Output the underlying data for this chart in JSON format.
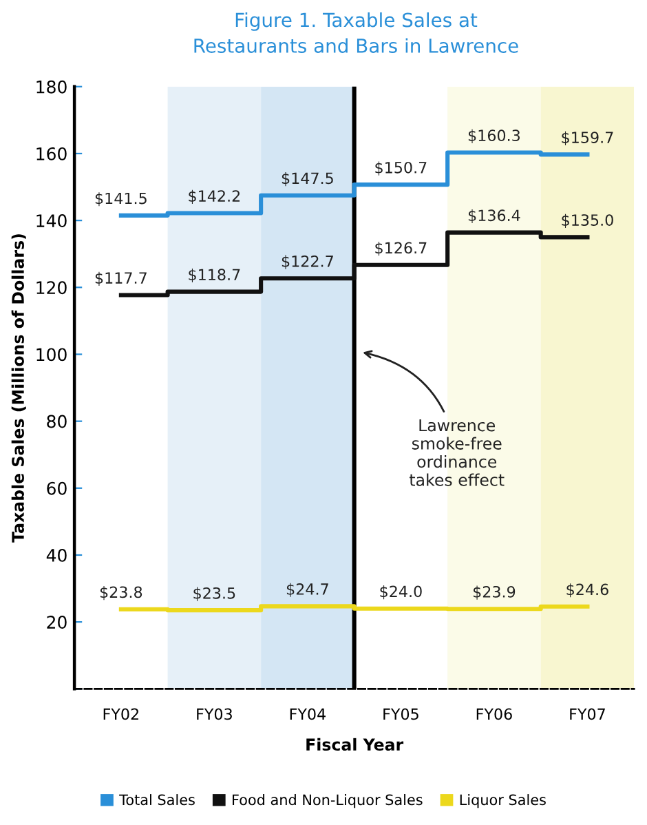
{
  "chart_data": {
    "type": "step",
    "title": "Figure 1. Taxable Sales at\nRestaurants and Bars in Lawrence",
    "xlabel": "Fiscal Year",
    "ylabel": "Taxable Sales (Millions of Dollars)",
    "categories": [
      "FY02",
      "FY03",
      "FY04",
      "FY05",
      "FY06",
      "FY07"
    ],
    "series": [
      {
        "name": "Total Sales",
        "color": "#2a8fd8",
        "values": [
          141.5,
          142.2,
          147.5,
          150.7,
          160.3,
          159.7
        ],
        "value_labels": [
          "$141.5",
          "$142.2",
          "$147.5",
          "$150.7",
          "$160.3",
          "$159.7"
        ]
      },
      {
        "name": "Food and Non-Liquor Sales",
        "color": "#111111",
        "values": [
          117.7,
          118.7,
          122.7,
          126.7,
          136.4,
          135.0
        ],
        "value_labels": [
          "$117.7",
          "$118.7",
          "$122.7",
          "$126.7",
          "$136.4",
          "$135.0"
        ]
      },
      {
        "name": "Liquor Sales",
        "color": "#ecd81c",
        "values": [
          23.8,
          23.5,
          24.7,
          24.0,
          23.9,
          24.6
        ],
        "value_labels": [
          "$23.8",
          "$23.5",
          "$24.7",
          "$24.0",
          "$23.9",
          "$24.6"
        ]
      }
    ],
    "ylim": [
      0,
      180
    ],
    "yticks": [
      {
        "value": 0,
        "label": null
      },
      20,
      40,
      60,
      80,
      100,
      120,
      140,
      160,
      180
    ],
    "bands": [
      {
        "axis": "x",
        "from": "FY03",
        "to": "FY03",
        "color": "#e6f0f8"
      },
      {
        "axis": "x",
        "from": "FY04",
        "to": "FY04",
        "color": "#d4e6f4"
      },
      {
        "axis": "x",
        "from": "FY06",
        "to": "FY06",
        "color": "#fbfbe8"
      },
      {
        "axis": "x",
        "from": "FY07",
        "to": "FY07",
        "color": "#f8f6d0"
      }
    ],
    "annotations": [
      "Lawrence\nsmoke-free\nordinance\ntakes effect"
    ],
    "legend": "bottom",
    "grid": false
  }
}
